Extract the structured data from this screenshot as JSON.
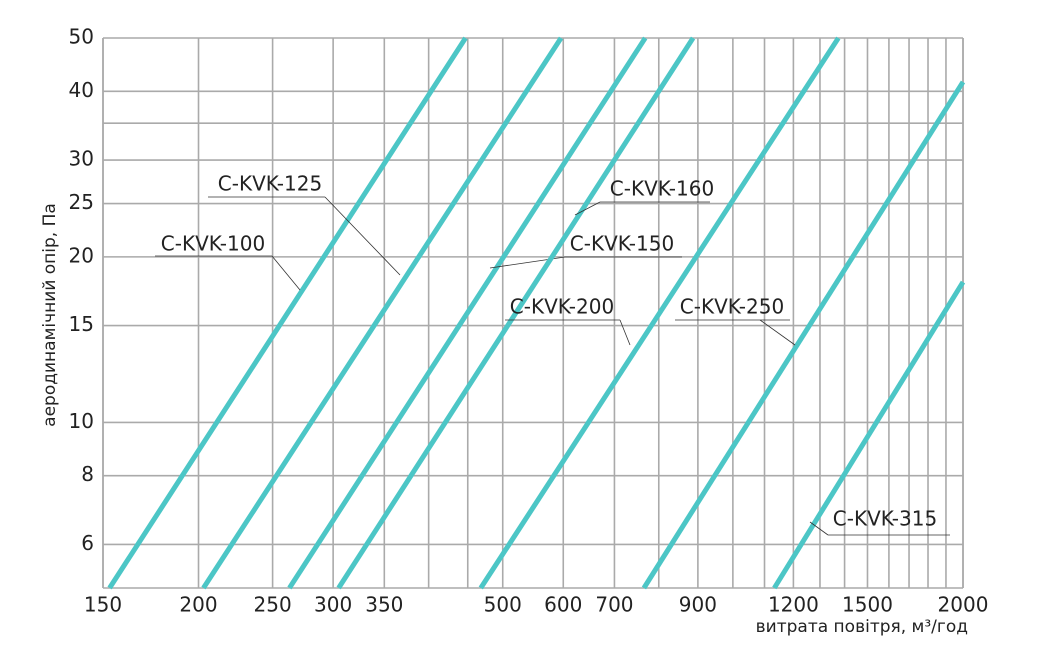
{
  "chart_data": {
    "type": "line",
    "x_label": "витрата повітря, м³/год",
    "y_label": "аеродинамічний опір, Па",
    "xlog": true,
    "ylog": true,
    "grid": true,
    "xlim": [
      150,
      2000
    ],
    "ylim": [
      5,
      50
    ],
    "xticks": [
      150,
      200,
      250,
      300,
      350,
      500,
      600,
      700,
      900,
      1200,
      1500,
      2000
    ],
    "yticks": [
      6,
      8,
      10,
      15,
      20,
      25,
      30,
      40,
      50
    ],
    "x_minor_grid": [
      400,
      450,
      800,
      1000,
      1100,
      1300,
      1400,
      1600,
      1700,
      1800,
      1900
    ],
    "y_minor_grid": [
      35
    ],
    "series": [
      {
        "name": "C-KVK-100",
        "color": "#4cc6c6",
        "x": [
          153,
          447
        ],
        "values": [
          5,
          50
        ]
      },
      {
        "name": "C-KVK-125",
        "color": "#4cc6c6",
        "x": [
          203,
          596
        ],
        "values": [
          5,
          50
        ]
      },
      {
        "name": "C-KVK-150",
        "color": "#4cc6c6",
        "x": [
          263,
          768
        ],
        "values": [
          5,
          50
        ]
      },
      {
        "name": "C-KVK-160",
        "color": "#4cc6c6",
        "x": [
          305,
          887
        ],
        "values": [
          5,
          50
        ]
      },
      {
        "name": "C-KVK-200",
        "color": "#4cc6c6",
        "x": [
          468,
          1374
        ],
        "values": [
          5,
          50
        ]
      },
      {
        "name": "C-KVK-250",
        "color": "#4cc6c6",
        "x": [
          765,
          2000
        ],
        "values": [
          5,
          41.6
        ]
      },
      {
        "name": "C-KVK-315",
        "color": "#4cc6c6",
        "x": [
          1133,
          2000
        ],
        "values": [
          5,
          18
        ]
      }
    ]
  }
}
